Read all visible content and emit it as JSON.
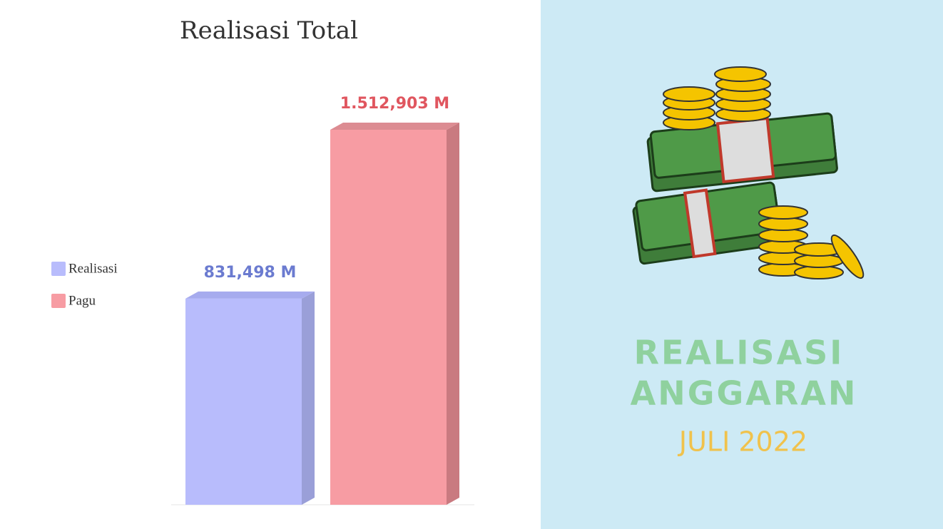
{
  "chart_data": {
    "type": "bar",
    "title": "Realisasi Total",
    "series": [
      {
        "name": "Realisasi",
        "color": "#b8bcfc",
        "side_color": "#9a9fd8",
        "top_color": "#a6abee",
        "label_color": "#6b7bd0",
        "values": [
          831.498
        ],
        "value_labels": [
          "831,498 M"
        ]
      },
      {
        "name": "Pagu",
        "color": "#f79ca3",
        "side_color": "#c97a80",
        "top_color": "#dc8c92",
        "label_color": "#e0565f",
        "values": [
          1512.903
        ],
        "value_labels": [
          "1.512,903 M"
        ]
      }
    ]
  },
  "banner": {
    "line1": "REALISASI",
    "line2": "ANGGARAN",
    "line3": "JULI 2022"
  }
}
